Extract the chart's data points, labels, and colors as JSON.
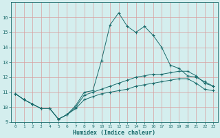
{
  "xlabel": "Humidex (Indice chaleur)",
  "background_color": "#d4eeee",
  "grid_color": "#c0dede",
  "line_color": "#1a6b6b",
  "xlim": [
    -0.5,
    23.5
  ],
  "ylim": [
    9,
    17
  ],
  "xticks": [
    0,
    1,
    2,
    3,
    4,
    5,
    6,
    7,
    8,
    9,
    10,
    11,
    12,
    13,
    14,
    15,
    16,
    17,
    18,
    19,
    20,
    21,
    22,
    23
  ],
  "yticks": [
    9,
    10,
    11,
    12,
    13,
    14,
    15,
    16
  ],
  "lines": [
    {
      "x": [
        0,
        1,
        2,
        3,
        4,
        5,
        6,
        7,
        8,
        9,
        10,
        11,
        12,
        13,
        14,
        15,
        16,
        17,
        18,
        19,
        20,
        21,
        22,
        23
      ],
      "y": [
        10.9,
        10.5,
        10.2,
        9.9,
        9.9,
        9.2,
        9.5,
        10.1,
        11.0,
        11.1,
        13.1,
        15.5,
        16.3,
        15.4,
        15.0,
        15.4,
        14.8,
        14.0,
        12.8,
        12.6,
        12.1,
        12.0,
        11.7,
        11.4
      ]
    },
    {
      "x": [
        0,
        1,
        2,
        3,
        4,
        5,
        6,
        7,
        8,
        9,
        10,
        11,
        12,
        13,
        14,
        15,
        16,
        17,
        18,
        19,
        20,
        21,
        22,
        23
      ],
      "y": [
        10.9,
        10.5,
        10.2,
        9.9,
        9.9,
        9.2,
        9.5,
        10.0,
        10.8,
        11.0,
        11.2,
        11.4,
        11.6,
        11.8,
        12.0,
        12.1,
        12.2,
        12.2,
        12.3,
        12.4,
        12.4,
        12.1,
        11.6,
        11.4
      ]
    },
    {
      "x": [
        0,
        1,
        2,
        3,
        4,
        5,
        6,
        7,
        8,
        9,
        10,
        11,
        12,
        13,
        14,
        15,
        16,
        17,
        18,
        19,
        20,
        21,
        22,
        23
      ],
      "y": [
        10.9,
        10.5,
        10.2,
        9.9,
        9.9,
        9.2,
        9.5,
        9.9,
        10.5,
        10.7,
        10.9,
        11.0,
        11.1,
        11.2,
        11.4,
        11.5,
        11.6,
        11.7,
        11.8,
        11.9,
        11.9,
        11.6,
        11.2,
        11.1
      ]
    }
  ]
}
